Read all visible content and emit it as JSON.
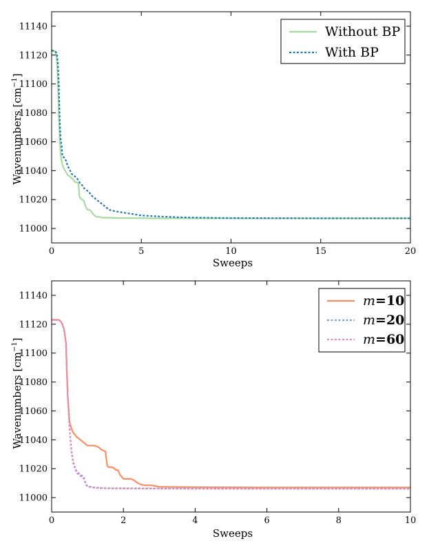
{
  "chart_data": [
    {
      "type": "line",
      "xlabel": "Sweeps",
      "ylabel": "Wavenumbers [cm",
      "ylabel_sup": "−1",
      "ylabel_close": "]",
      "xlim": [
        0,
        20
      ],
      "ylim": [
        10990,
        11150
      ],
      "xticks": [
        0,
        5,
        10,
        15,
        20
      ],
      "yticks": [
        11000,
        11020,
        11040,
        11060,
        11080,
        11100,
        11120,
        11140
      ],
      "legend": "top-right",
      "series": [
        {
          "name": "Without BP",
          "color": "#a6dba0",
          "dash": "solid",
          "x": [
            0,
            0.15,
            0.25,
            0.3,
            0.35,
            0.4,
            0.45,
            0.5,
            0.55,
            0.6,
            0.7,
            0.8,
            0.9,
            1.0,
            1.1,
            1.2,
            1.3,
            1.4,
            1.5,
            1.55,
            1.6,
            1.7,
            1.8,
            1.9,
            2.0,
            2.1,
            2.2,
            2.3,
            2.4,
            2.5,
            2.6,
            2.7,
            2.8,
            3.0,
            3.5,
            4,
            5,
            6,
            8,
            10,
            15,
            20
          ],
          "y": [
            11123,
            11123,
            11121,
            11115,
            11100,
            11080,
            11062,
            11052,
            11047,
            11044,
            11041,
            11039,
            11037,
            11036,
            11035,
            11034,
            11032,
            11032,
            11031,
            11022,
            11021,
            11020,
            11019,
            11015,
            11013,
            11013,
            11012,
            11010,
            11009,
            11008,
            11008,
            11008,
            11007.5,
            11007.5,
            11007.3,
            11007.2,
            11007.1,
            11007,
            11007,
            11007,
            11007,
            11007
          ]
        },
        {
          "name": "With BP",
          "color": "#1f78b4",
          "dash": "dotted",
          "x": [
            0,
            0.15,
            0.25,
            0.3,
            0.35,
            0.4,
            0.45,
            0.5,
            0.55,
            0.6,
            0.7,
            0.8,
            0.9,
            1.0,
            1.1,
            1.2,
            1.3,
            1.4,
            1.5,
            1.6,
            1.7,
            1.8,
            1.9,
            2.0,
            2.1,
            2.2,
            2.3,
            2.4,
            2.5,
            2.6,
            2.7,
            2.8,
            3.0,
            3.2,
            3.5,
            4,
            4.5,
            5,
            6,
            7,
            8,
            10,
            15,
            20
          ],
          "y": [
            11123,
            11123,
            11122,
            11120,
            11114,
            11100,
            11075,
            11062,
            11058,
            11050,
            11049,
            11047,
            11043,
            11041,
            11038,
            11037,
            11036,
            11035,
            11033,
            11031,
            11030,
            11028,
            11027,
            11026,
            11025,
            11023,
            11022,
            11021,
            11020,
            11019,
            11018,
            11017,
            11015,
            11013,
            11012,
            11011,
            11010,
            11009,
            11008.3,
            11007.8,
            11007.5,
            11007.2,
            11007,
            11007
          ]
        }
      ]
    },
    {
      "type": "line",
      "xlabel": "Sweeps",
      "ylabel": "Wavenumbers [cm",
      "ylabel_sup": "−1",
      "ylabel_close": "]",
      "xlim": [
        0,
        10
      ],
      "ylim": [
        10990,
        11150
      ],
      "xticks": [
        0,
        2,
        4,
        6,
        8,
        10
      ],
      "yticks": [
        11000,
        11020,
        11040,
        11060,
        11080,
        11100,
        11120,
        11140
      ],
      "legend": "top-right",
      "series": [
        {
          "name": "m=10",
          "name_italic": "m",
          "name_rest": "=10",
          "color": "#fc8d62",
          "dash": "solid",
          "x": [
            0,
            0.1,
            0.2,
            0.25,
            0.3,
            0.35,
            0.4,
            0.42,
            0.45,
            0.5,
            0.55,
            0.6,
            0.7,
            0.8,
            0.9,
            1.0,
            1.1,
            1.2,
            1.3,
            1.4,
            1.5,
            1.55,
            1.6,
            1.7,
            1.8,
            1.85,
            1.9,
            2.0,
            2.1,
            2.2,
            2.3,
            2.4,
            2.5,
            2.6,
            2.7,
            2.8,
            3.0,
            3.5,
            4,
            6,
            8,
            10
          ],
          "y": [
            11123,
            11123,
            11123,
            11122,
            11120,
            11116,
            11107,
            11090,
            11070,
            11052,
            11048,
            11045,
            11042,
            11040,
            11038,
            11036,
            11036,
            11036,
            11035,
            11033,
            11032,
            11022,
            11021,
            11021,
            11019,
            11019,
            11016,
            11013,
            11013,
            11013,
            11012,
            11010,
            11009,
            11008.5,
            11008.5,
            11008.5,
            11007.5,
            11007.3,
            11007.2,
            11007,
            11007,
            11007
          ]
        },
        {
          "name": "m=20",
          "name_italic": "m",
          "name_rest": "=20",
          "color": "#8da0cb",
          "dash": "dotted",
          "x": [
            0,
            0.1,
            0.2,
            0.25,
            0.3,
            0.35,
            0.4,
            0.42,
            0.45,
            0.5,
            0.55,
            0.6,
            0.65,
            0.7,
            0.8,
            0.9,
            0.95,
            1.0,
            1.2,
            1.5,
            2,
            3,
            4,
            6,
            8,
            10
          ],
          "y": [
            11123,
            11123,
            11123,
            11122,
            11120,
            11116,
            11107,
            11090,
            11070,
            11048,
            11033,
            11025,
            11021,
            11018,
            11016,
            11014,
            11010,
            11008,
            11007,
            11006.5,
            11006.5,
            11006.3,
            11006.2,
            11006.2,
            11006.2,
            11006.2
          ]
        },
        {
          "name": "m=60",
          "name_italic": "m",
          "name_rest": "=60",
          "color": "#e78ac3",
          "dash": "dotted",
          "x": [
            0,
            0.1,
            0.2,
            0.25,
            0.3,
            0.35,
            0.4,
            0.42,
            0.45,
            0.5,
            0.55,
            0.6,
            0.65,
            0.7,
            0.8,
            0.9,
            0.95,
            1.0,
            1.2,
            1.5,
            2,
            3,
            4,
            6,
            8,
            10
          ],
          "y": [
            11123,
            11123,
            11123,
            11122,
            11120,
            11116,
            11107,
            11090,
            11070,
            11047,
            11032,
            11024,
            11020,
            11017,
            11015,
            11013,
            11009,
            11007.5,
            11006.8,
            11006.4,
            11006.3,
            11006.2,
            11006.1,
            11006.1,
            11006.1,
            11006.1
          ]
        }
      ]
    }
  ]
}
